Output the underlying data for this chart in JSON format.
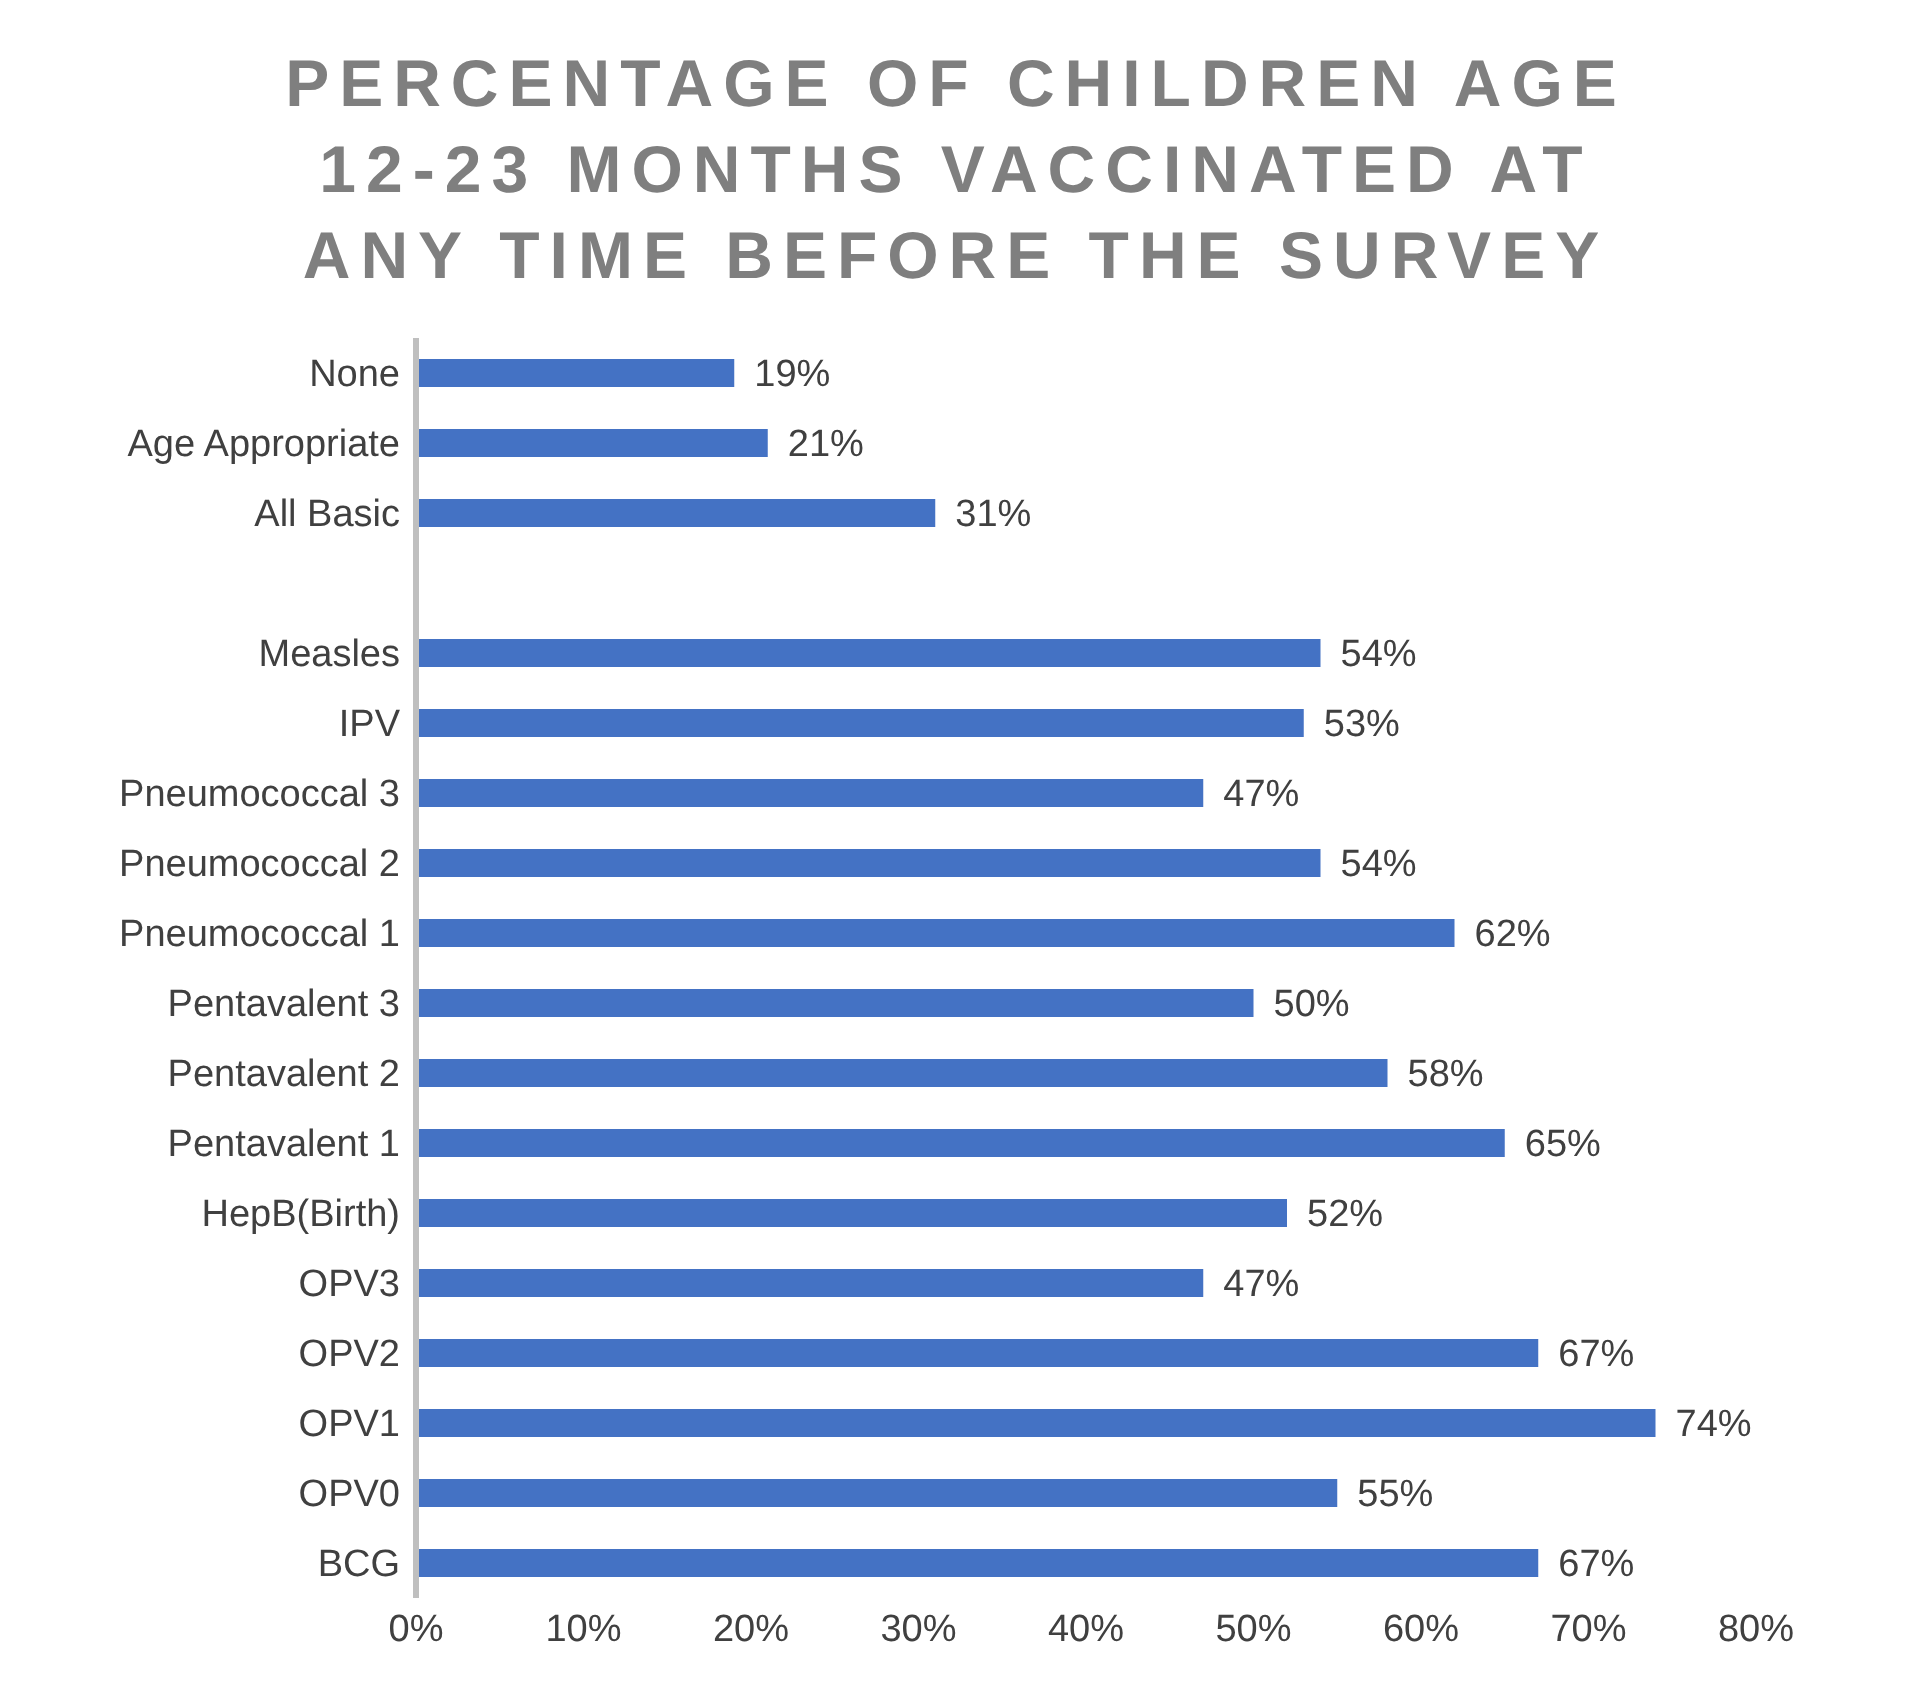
{
  "chart_data": {
    "type": "bar",
    "orientation": "horizontal",
    "title": "PERCENTAGE OF CHILDREN AGE 12-23 MONTHS VACCINATED AT ANY TIME BEFORE THE SURVEY",
    "categories": [
      "None",
      "Age Appropriate",
      "All Basic",
      null,
      "Measles",
      "IPV",
      "Pneumococcal 3",
      "Pneumococcal 2",
      "Pneumococcal 1",
      "Pentavalent 3",
      "Pentavalent 2",
      "Pentavalent 1",
      "HepB(Birth)",
      "OPV3",
      "OPV2",
      "OPV1",
      "OPV0",
      "BCG"
    ],
    "values": [
      19,
      21,
      31,
      null,
      54,
      53,
      47,
      54,
      62,
      50,
      58,
      65,
      52,
      47,
      67,
      74,
      55,
      67
    ],
    "value_labels": [
      "19%",
      "21%",
      "31%",
      null,
      "54%",
      "53%",
      "47%",
      "54%",
      "62%",
      "50%",
      "58%",
      "65%",
      "52%",
      "47%",
      "67%",
      "74%",
      "55%",
      "67%"
    ],
    "color": "#4472c4",
    "xlim": [
      0,
      80
    ],
    "xticks": [
      {
        "value": 0,
        "label": "0%"
      },
      {
        "value": 10,
        "label": "10%"
      },
      {
        "value": 20,
        "label": "20%"
      },
      {
        "value": 30,
        "label": "30%"
      },
      {
        "value": 40,
        "label": "40%"
      },
      {
        "value": 50,
        "label": "50%"
      },
      {
        "value": 60,
        "label": "60%"
      },
      {
        "value": 70,
        "label": "70%"
      },
      {
        "value": 80,
        "label": "80%"
      }
    ],
    "grid": false,
    "legend": false
  }
}
